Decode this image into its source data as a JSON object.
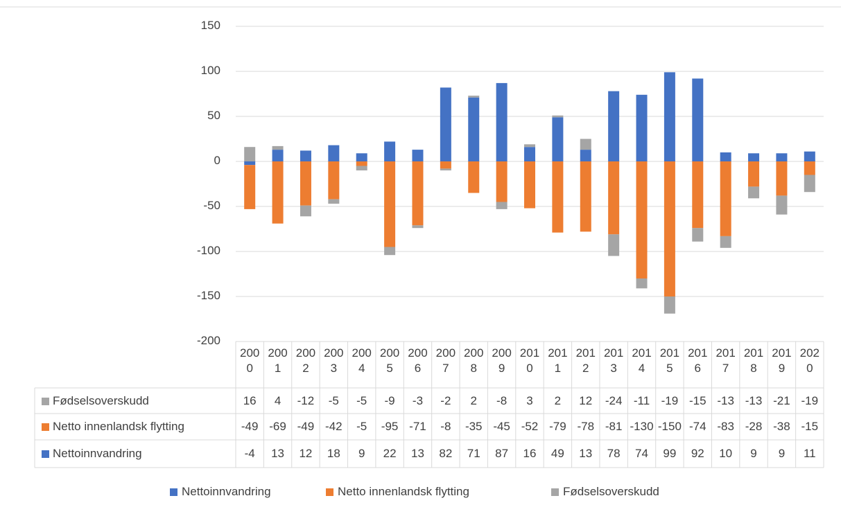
{
  "chart_data": {
    "type": "stacked-bar",
    "categories": [
      "2000",
      "2001",
      "2002",
      "2003",
      "2004",
      "2005",
      "2006",
      "2007",
      "2008",
      "2009",
      "2010",
      "2011",
      "2012",
      "2013",
      "2014",
      "2015",
      "2016",
      "2017",
      "2018",
      "2019",
      "2020"
    ],
    "series": [
      {
        "name": "Nettoinnvandring",
        "color": "#4472c4",
        "values": [
          -4,
          13,
          12,
          18,
          9,
          22,
          13,
          82,
          71,
          87,
          16,
          49,
          13,
          78,
          74,
          99,
          92,
          10,
          9,
          9,
          11
        ]
      },
      {
        "name": "Netto innenlandsk flytting",
        "color": "#ed7d31",
        "values": [
          -49,
          -69,
          -49,
          -42,
          -5,
          -95,
          -71,
          -8,
          -35,
          -45,
          -52,
          -79,
          -78,
          -81,
          -130,
          -150,
          -74,
          -83,
          -28,
          -38,
          -15
        ]
      },
      {
        "name": "Fødselsoverskudd",
        "color": "#a5a5a5",
        "values": [
          16,
          4,
          -12,
          -5,
          -5,
          -9,
          -3,
          -2,
          2,
          -8,
          3,
          2,
          12,
          -24,
          -11,
          -19,
          -15,
          -13,
          -13,
          -21,
          -19
        ]
      }
    ],
    "ylim": [
      -200,
      150
    ],
    "yticks": [
      -200,
      -150,
      -100,
      -50,
      0,
      50,
      100,
      150
    ],
    "grid": true
  }
}
